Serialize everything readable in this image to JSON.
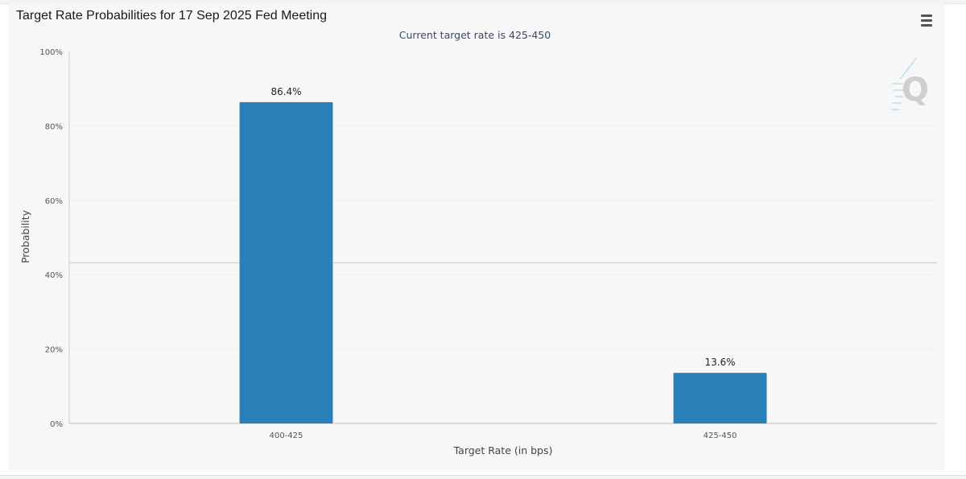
{
  "colors": {
    "bar": "#2980b9",
    "background": "#f7f7f7",
    "grid": "#d4d4d4"
  },
  "menu": {
    "icon": "hamburger-menu-icon"
  },
  "watermark": {
    "icon": "q-logo-icon",
    "letter": "Q"
  },
  "chart_data": {
    "type": "bar",
    "title": "Target Rate Probabilities for 17 Sep 2025 Fed Meeting",
    "subtitle": "Current target rate is 425-450",
    "xlabel": "Target Rate (in bps)",
    "ylabel": "Probability",
    "categories": [
      "400-425",
      "425-450"
    ],
    "values": [
      86.4,
      13.6
    ],
    "data_labels": [
      "86.4%",
      "13.6%"
    ],
    "ylim": [
      0,
      100
    ],
    "yticks": [
      0,
      20,
      40,
      60,
      80,
      100
    ],
    "ytick_labels": [
      "0%",
      "20%",
      "40%",
      "60%",
      "80%",
      "100%"
    ],
    "reference_line": 43.2,
    "grid": true,
    "legend": "none"
  }
}
